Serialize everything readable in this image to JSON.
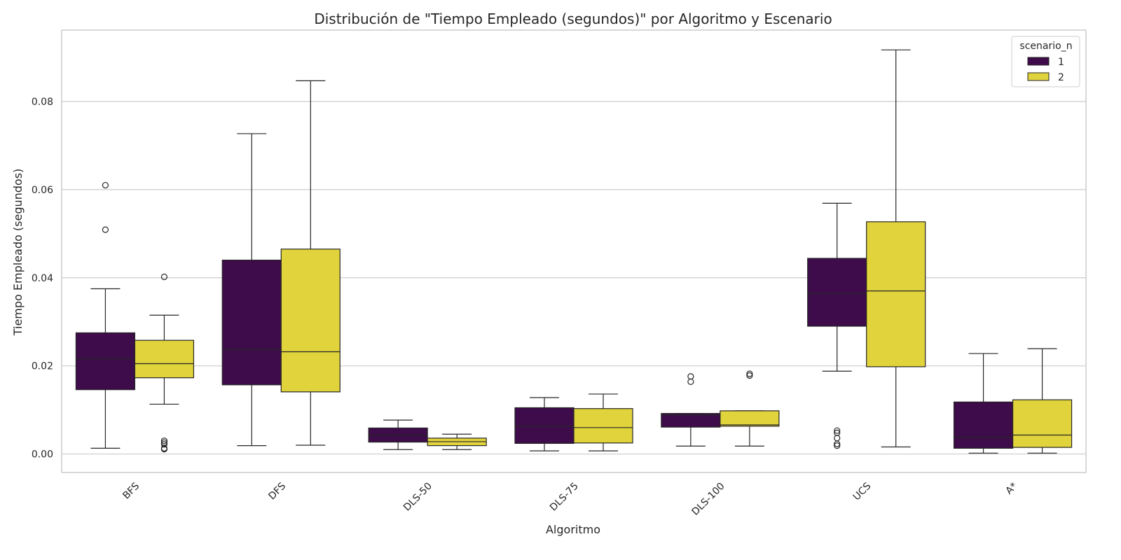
{
  "chart_data": {
    "type": "box",
    "title": "Distribución de \"Tiempo Empleado (segundos)\" por Algoritmo y Escenario",
    "xlabel": "Algoritmo",
    "ylabel": "Tiempo Empleado (segundos)",
    "ylim": [
      -0.0042,
      0.0962
    ],
    "yticks": [
      0.0,
      0.02,
      0.04,
      0.06,
      0.08
    ],
    "ytick_labels": [
      "0.00",
      "0.02",
      "0.04",
      "0.06",
      "0.08"
    ],
    "grid": "horizontal",
    "categories": [
      "BFS",
      "DFS",
      "DLS-50",
      "DLS-75",
      "DLS-100",
      "UCS",
      "A*"
    ],
    "legend": {
      "title": "scenario_n",
      "placement": "top-right"
    },
    "series": [
      {
        "name": "1",
        "color": "#3e0c4a",
        "boxes": [
          {
            "whislo": 0.0013,
            "q1": 0.0146,
            "med": 0.0216,
            "q3": 0.0275,
            "whishi": 0.0375,
            "fliers": [
              0.0509,
              0.061
            ]
          },
          {
            "whislo": 0.0019,
            "q1": 0.0157,
            "med": 0.0237,
            "q3": 0.044,
            "whishi": 0.0727,
            "fliers": []
          },
          {
            "whislo": 0.001,
            "q1": 0.0027,
            "med": 0.0042,
            "q3": 0.0059,
            "whishi": 0.0077,
            "fliers": []
          },
          {
            "whislo": 0.0007,
            "q1": 0.0024,
            "med": 0.0063,
            "q3": 0.0105,
            "whishi": 0.0128,
            "fliers": []
          },
          {
            "whislo": 0.0018,
            "q1": 0.0061,
            "med": 0.0088,
            "q3": 0.0092,
            "whishi": 0.0092,
            "fliers": [
              0.0164,
              0.0176
            ]
          },
          {
            "whislo": 0.0188,
            "q1": 0.029,
            "med": 0.0364,
            "q3": 0.0444,
            "whishi": 0.0569,
            "fliers": [
              0.0019,
              0.0023,
              0.0036,
              0.0048,
              0.0053
            ]
          },
          {
            "whislo": 0.0002,
            "q1": 0.0013,
            "med": 0.0038,
            "q3": 0.0118,
            "whishi": 0.0228,
            "fliers": []
          }
        ]
      },
      {
        "name": "2",
        "color": "#e1d33b",
        "boxes": [
          {
            "whislo": 0.0113,
            "q1": 0.0173,
            "med": 0.0205,
            "q3": 0.0258,
            "whishi": 0.0315,
            "fliers": [
              0.0011,
              0.0013,
              0.0022,
              0.0026,
              0.003,
              0.0402
            ]
          },
          {
            "whislo": 0.002,
            "q1": 0.0141,
            "med": 0.0232,
            "q3": 0.0465,
            "whishi": 0.0847,
            "fliers": []
          },
          {
            "whislo": 0.001,
            "q1": 0.0019,
            "med": 0.0028,
            "q3": 0.0036,
            "whishi": 0.0045,
            "fliers": []
          },
          {
            "whislo": 0.0007,
            "q1": 0.0025,
            "med": 0.006,
            "q3": 0.0103,
            "whishi": 0.0136,
            "fliers": []
          },
          {
            "whislo": 0.0018,
            "q1": 0.0063,
            "med": 0.0066,
            "q3": 0.0098,
            "whishi": 0.0098,
            "fliers": [
              0.0178,
              0.0182
            ]
          },
          {
            "whislo": 0.0016,
            "q1": 0.0198,
            "med": 0.037,
            "q3": 0.0527,
            "whishi": 0.0917,
            "fliers": []
          },
          {
            "whislo": 0.0002,
            "q1": 0.0015,
            "med": 0.0043,
            "q3": 0.0123,
            "whishi": 0.0239,
            "fliers": []
          }
        ]
      }
    ]
  }
}
